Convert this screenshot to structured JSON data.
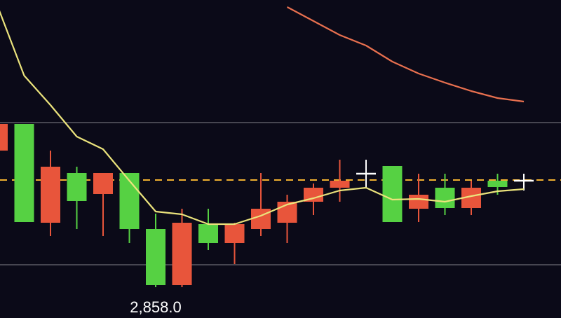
{
  "chart_data": {
    "type": "candlestick",
    "categories": [
      null,
      null,
      null,
      null,
      null,
      null,
      null,
      null,
      null,
      null,
      null,
      null,
      null,
      null,
      null,
      null,
      null,
      null,
      null,
      null,
      null
    ],
    "open": [
      2897.0,
      2904.6,
      2876.4,
      2890.6,
      2884.6,
      2890.6,
      2874.6,
      2858.6,
      2876.0,
      2870.6,
      2874.6,
      2876.4,
      2882.4,
      2886.4,
      2890.4,
      2892.6,
      2880.4,
      2886.4,
      2880.6,
      2888.4,
      2888.4
    ],
    "close": [
      2904.6,
      2876.6,
      2892.4,
      2882.6,
      2890.6,
      2874.6,
      2858.6,
      2876.4,
      2870.6,
      2876.0,
      2880.4,
      2882.4,
      2886.4,
      2888.4,
      2890.4,
      2876.6,
      2884.4,
      2880.6,
      2886.4,
      2886.6,
      2888.4
    ],
    "high": [
      2904.6,
      2904.6,
      2897.0,
      2892.4,
      2890.6,
      2890.6,
      2879.0,
      2880.4,
      2880.4,
      2876.4,
      2890.6,
      2884.4,
      2887.6,
      2894.4,
      2894.4,
      2892.6,
      2890.4,
      2890.4,
      2888.4,
      2890.4,
      2890.4
    ],
    "low": [
      2897.0,
      2876.6,
      2872.6,
      2874.6,
      2872.6,
      2870.6,
      2858.0,
      2858.0,
      2868.6,
      2864.6,
      2872.6,
      2870.6,
      2878.6,
      2882.4,
      2886.4,
      2876.6,
      2876.6,
      2878.6,
      2878.6,
      2884.4,
      2885.6
    ],
    "up_color": "#e8553b",
    "down_color": "#56d143",
    "flat_color": "#ffffff",
    "series": [
      {
        "color": "#ebe37c",
        "values": [
          2938.0,
          2918.4,
          2910.0,
          2901.0,
          2897.4,
          2888.4,
          2879.6,
          2878.8,
          2876.0,
          2876.0,
          2878.4,
          2881.6,
          2883.4,
          2885.6,
          2886.4,
          2883.0,
          2883.2,
          2882.4,
          2884.0,
          2885.4,
          2886.0
        ]
      },
      {
        "color": "#e8704f",
        "values": [
          null,
          null,
          null,
          null,
          null,
          null,
          null,
          null,
          null,
          null,
          null,
          2938.0,
          2934.0,
          2930.0,
          2927.0,
          2922.4,
          2919.0,
          2916.4,
          2914.0,
          2912.0,
          2911.0
        ]
      }
    ],
    "hlines": [
      2905.0,
      2864.4
    ],
    "hline_color": "#6b6b73",
    "price_line": 2888.6,
    "price_line_color": "#f0b030",
    "annotation": {
      "label": "2,858.0",
      "value": 2858.0
    },
    "ylim": [
      2849.2,
      2940.0
    ]
  }
}
